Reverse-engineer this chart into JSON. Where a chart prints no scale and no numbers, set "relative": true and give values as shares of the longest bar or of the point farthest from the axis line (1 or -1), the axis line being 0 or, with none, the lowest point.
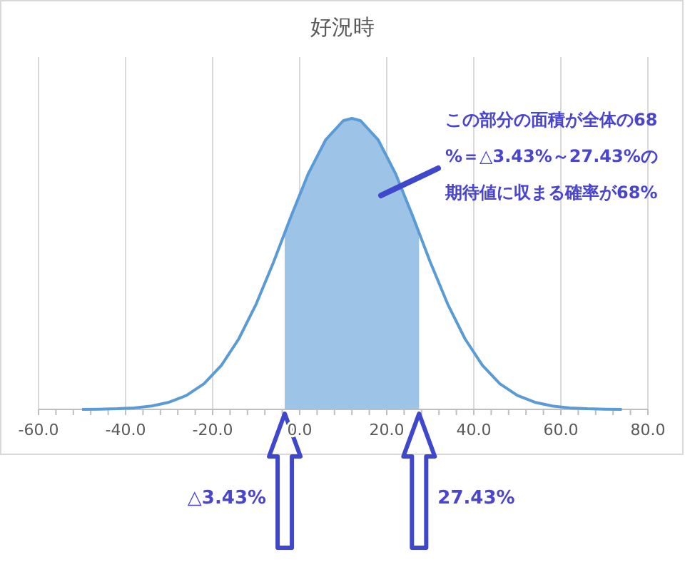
{
  "chart_data": {
    "type": "line",
    "title": "好況時",
    "relative": true,
    "grid": "x",
    "xlim": [
      -60,
      80
    ],
    "xticks": [
      {
        "value": -60,
        "label": "-60.0"
      },
      {
        "value": -40,
        "label": "-40.0"
      },
      {
        "value": -20,
        "label": "-20.0"
      },
      {
        "value": 0,
        "label": "0.0"
      },
      {
        "value": 20,
        "label": "20.0"
      },
      {
        "value": 40,
        "label": "40.0"
      },
      {
        "value": 60,
        "label": "60.0"
      },
      {
        "value": 80,
        "label": "80.0"
      }
    ],
    "tick_labels": "x",
    "series": [
      {
        "type": "area",
        "color": "#9dc3e6",
        "x": [
          -3.43,
          -2,
          2,
          6,
          10,
          12,
          14,
          18,
          22,
          26,
          27.43
        ],
        "values": [
          0.607,
          0.663,
          0.811,
          0.927,
          0.992,
          1,
          0.992,
          0.927,
          0.811,
          0.663,
          0.607
        ]
      },
      {
        "type": "line",
        "color": "#5b9bd5",
        "x": [
          -50,
          -46,
          -42,
          -38,
          -34,
          -30,
          -26,
          -22,
          -18,
          -14,
          -10,
          -6,
          -2,
          2,
          6,
          10,
          12,
          14,
          18,
          22,
          26,
          30,
          34,
          38,
          42,
          46,
          50,
          54,
          58,
          62,
          66,
          70,
          74
        ],
        "values": [
          0.0003,
          0.0009,
          0.0022,
          0.0052,
          0.0118,
          0.0246,
          0.048,
          0.088,
          0.151,
          0.242,
          0.362,
          0.506,
          0.663,
          0.811,
          0.927,
          0.992,
          1,
          0.992,
          0.927,
          0.811,
          0.663,
          0.506,
          0.362,
          0.242,
          0.151,
          0.088,
          0.048,
          0.0246,
          0.0118,
          0.0052,
          0.0022,
          0.0009,
          0.0003
        ]
      }
    ],
    "annotations": [
      "この部分の面積が全体の68%＝△3.43%～27.43%の期待値に収まる確率が68%",
      "△3.43%",
      "27.43%"
    ]
  }
}
